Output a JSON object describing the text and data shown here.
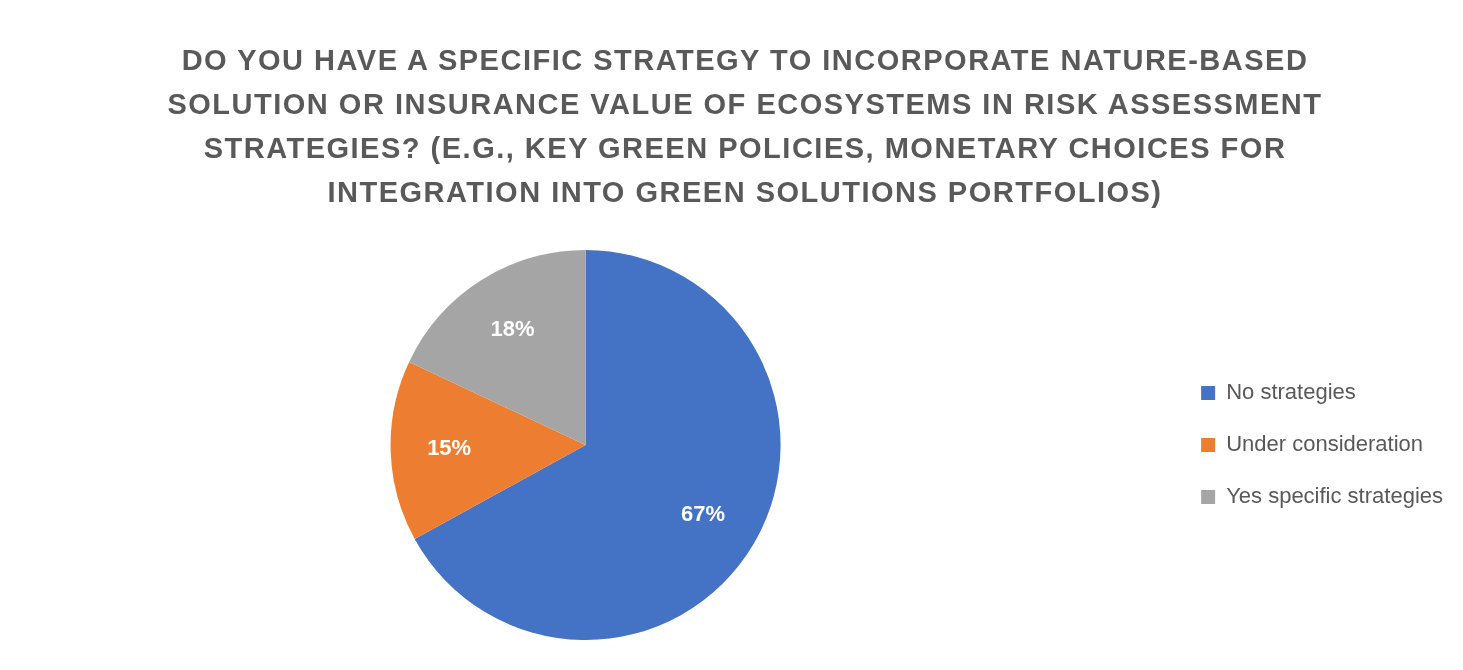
{
  "chart_data": {
    "type": "pie",
    "title": "DO YOU HAVE A SPECIFIC STRATEGY TO INCORPORATE NATURE-BASED SOLUTION OR INSURANCE VALUE OF ECOSYSTEMS IN RISK ASSESSMENT STRATEGIES? (E.G., KEY GREEN POLICIES, MONETARY CHOICES FOR INTEGRATION INTO GREEN SOLUTIONS PORTFOLIOS)",
    "categories": [
      "No strategies",
      "Under consideration",
      "Yes specific strategies"
    ],
    "values": [
      67,
      15,
      18
    ],
    "colors": [
      "#4472c4",
      "#ed7d31",
      "#a5a5a5"
    ],
    "value_labels": [
      "67%",
      "15%",
      "18%"
    ],
    "legend": "right"
  }
}
